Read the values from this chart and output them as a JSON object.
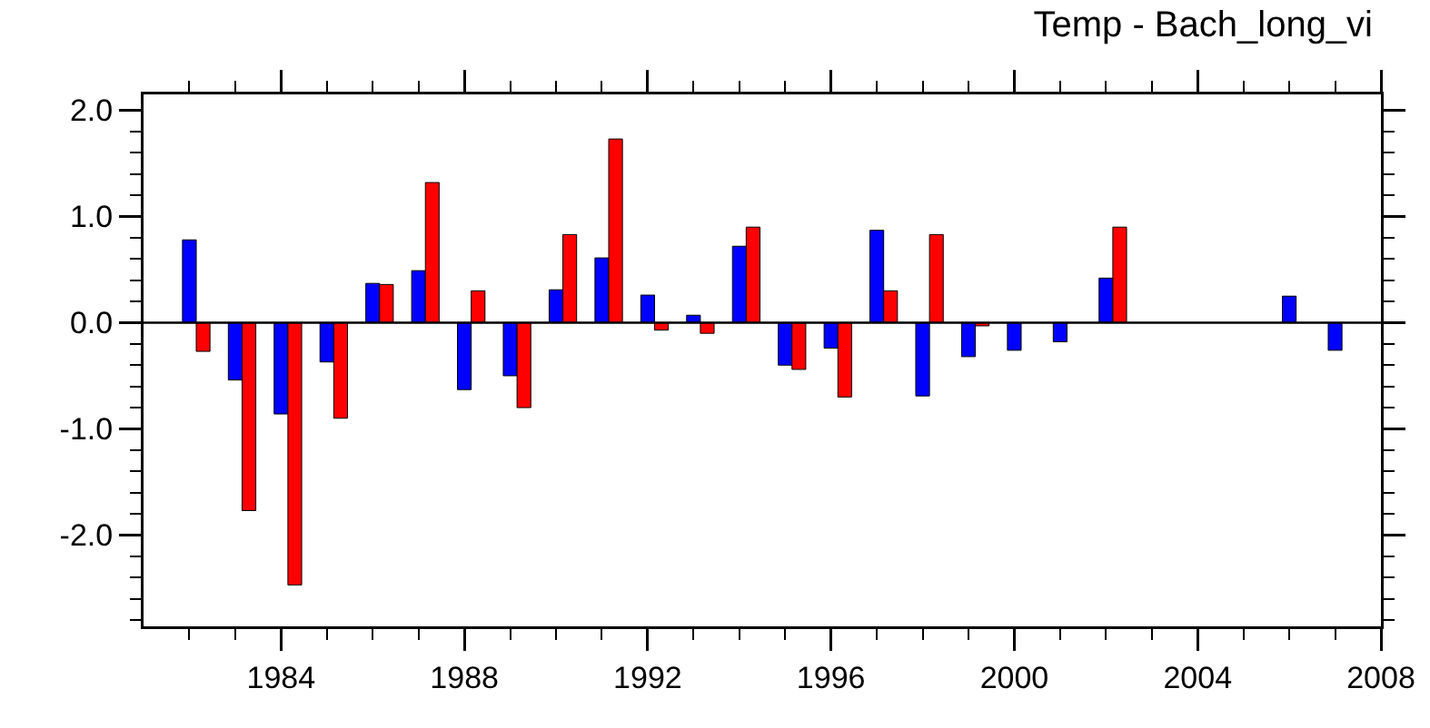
{
  "chart_data": {
    "type": "bar",
    "title": "Temp - Bach_long_vi",
    "x": [
      1982,
      1983,
      1984,
      1985,
      1986,
      1987,
      1988,
      1989,
      1990,
      1991,
      1992,
      1993,
      1994,
      1995,
      1996,
      1997,
      1998,
      1999,
      2000,
      2001,
      2002,
      2003,
      2004,
      2005,
      2006,
      2007
    ],
    "series": [
      {
        "color": "#0000ff",
        "values": [
          0.78,
          -0.54,
          -0.86,
          -0.37,
          0.37,
          0.49,
          -0.63,
          -0.5,
          0.31,
          0.61,
          0.26,
          0.07,
          0.72,
          -0.4,
          -0.24,
          0.87,
          -0.69,
          -0.32,
          -0.26,
          -0.18,
          0.42,
          null,
          null,
          null,
          0.25,
          -0.26
        ]
      },
      {
        "color": "#ff0000",
        "values": [
          -0.27,
          -1.77,
          -2.47,
          -0.9,
          0.36,
          1.32,
          0.3,
          -0.8,
          0.83,
          1.73,
          -0.07,
          -0.1,
          0.9,
          -0.44,
          -0.7,
          0.3,
          0.83,
          -0.03,
          null,
          null,
          0.9,
          null,
          null,
          null,
          null,
          null
        ]
      }
    ],
    "xlim": [
      1981,
      2008
    ],
    "xticks": [
      {
        "value": 1982,
        "label": null
      },
      {
        "value": 1983,
        "label": null
      },
      1984,
      {
        "value": 1985,
        "label": null
      },
      {
        "value": 1986,
        "label": null
      },
      {
        "value": 1987,
        "label": null
      },
      1988,
      {
        "value": 1989,
        "label": null
      },
      {
        "value": 1990,
        "label": null
      },
      {
        "value": 1991,
        "label": null
      },
      1992,
      {
        "value": 1993,
        "label": null
      },
      {
        "value": 1994,
        "label": null
      },
      {
        "value": 1995,
        "label": null
      },
      1996,
      {
        "value": 1997,
        "label": null
      },
      {
        "value": 1998,
        "label": null
      },
      {
        "value": 1999,
        "label": null
      },
      2000,
      {
        "value": 2001,
        "label": null
      },
      {
        "value": 2002,
        "label": null
      },
      {
        "value": 2003,
        "label": null
      },
      2004,
      {
        "value": 2005,
        "label": null
      },
      {
        "value": 2006,
        "label": null
      },
      {
        "value": 2007,
        "label": null
      },
      2008
    ],
    "ylim": [
      -2.86,
      2.15
    ],
    "yticks": [
      {
        "value": -2.8,
        "label": null
      },
      {
        "value": -2.6,
        "label": null
      },
      {
        "value": -2.4,
        "label": null
      },
      {
        "value": -2.2,
        "label": null
      },
      {
        "value": -2,
        "label": "-2.0"
      },
      {
        "value": -1.8,
        "label": null
      },
      {
        "value": -1.6,
        "label": null
      },
      {
        "value": -1.4,
        "label": null
      },
      {
        "value": -1.2,
        "label": null
      },
      {
        "value": -1,
        "label": "-1.0"
      },
      {
        "value": -0.8,
        "label": null
      },
      {
        "value": -0.6,
        "label": null
      },
      {
        "value": -0.4,
        "label": null
      },
      {
        "value": -0.2,
        "label": null
      },
      {
        "value": 0,
        "label": "0.0"
      },
      {
        "value": 0.2,
        "label": null
      },
      {
        "value": 0.4,
        "label": null
      },
      {
        "value": 0.6,
        "label": null
      },
      {
        "value": 0.8,
        "label": null
      },
      {
        "value": 1,
        "label": "1.0"
      },
      {
        "value": 1.2,
        "label": null
      },
      {
        "value": 1.4,
        "label": null
      },
      {
        "value": 1.6,
        "label": null
      },
      {
        "value": 1.8,
        "label": null
      },
      {
        "value": 2,
        "label": "2.0"
      }
    ],
    "ref_lines": [
      {
        "axis": "y",
        "value": 0,
        "color": "#000000"
      }
    ],
    "grid": false
  }
}
